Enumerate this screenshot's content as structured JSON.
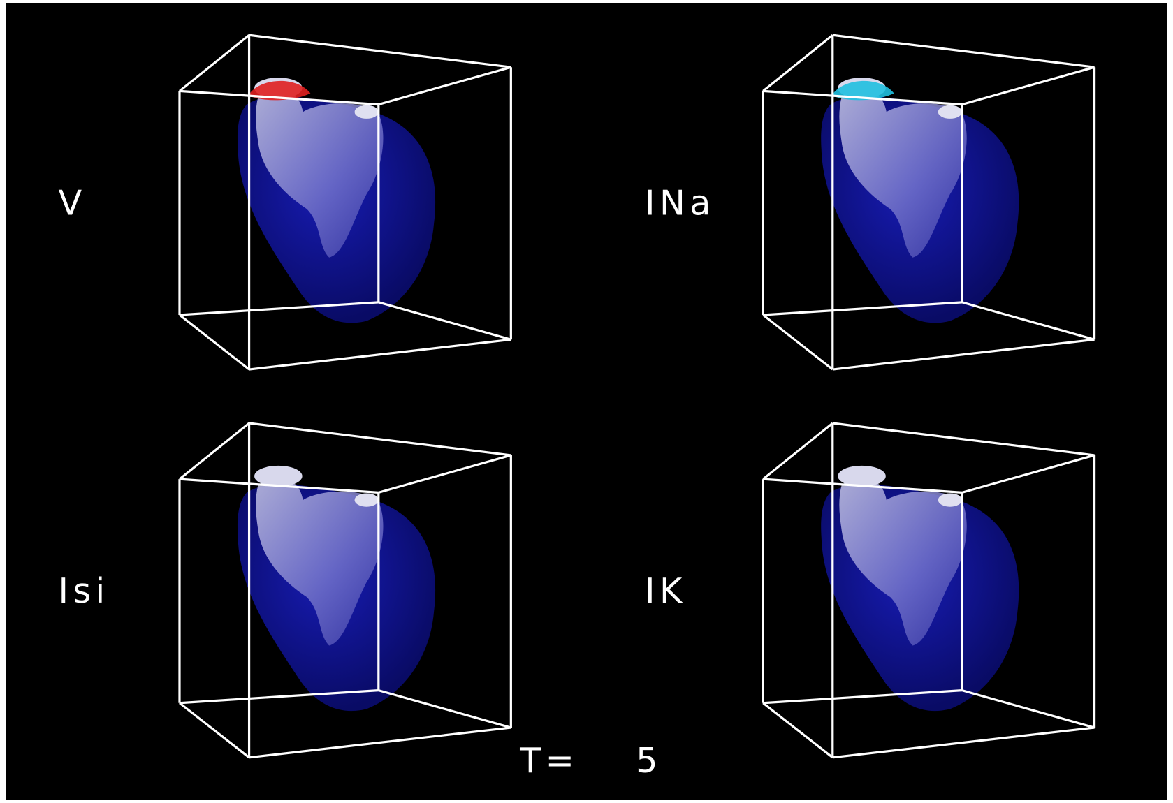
{
  "panels": [
    {
      "label": "V"
    },
    {
      "label": "INa"
    },
    {
      "label": "Isi"
    },
    {
      "label": "IK"
    }
  ],
  "time": {
    "label": "T=",
    "value": 5
  }
}
